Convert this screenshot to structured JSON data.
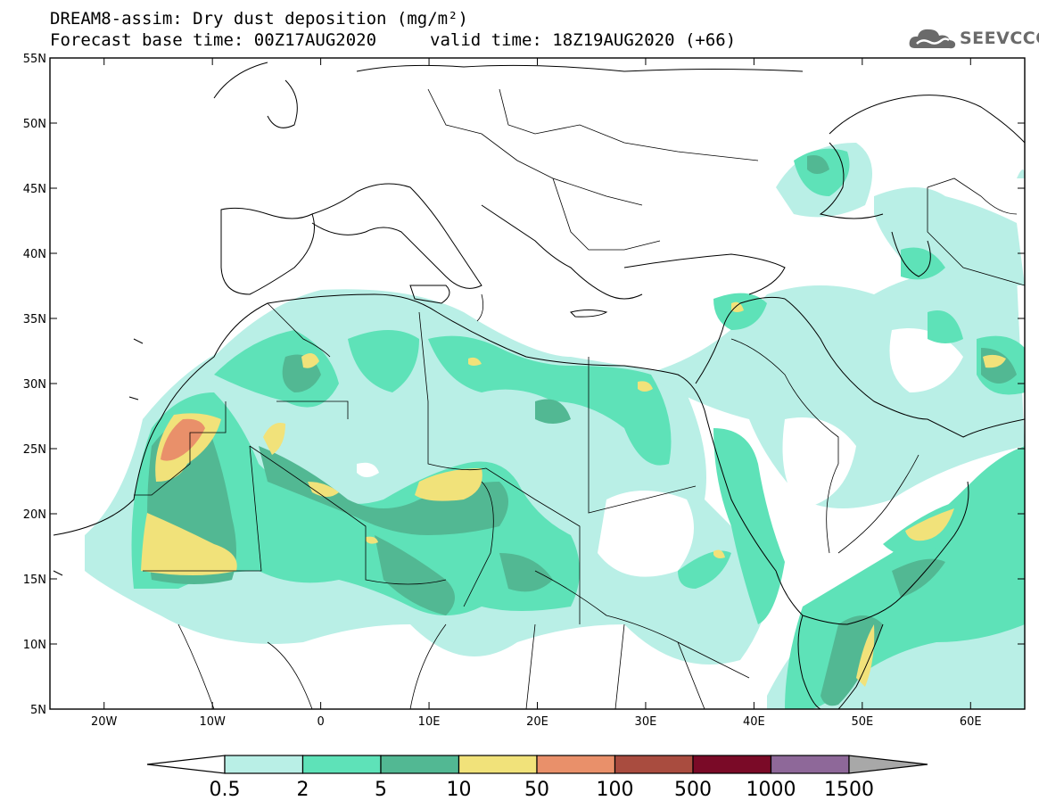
{
  "header": {
    "title_line1": "DREAM8-assim: Dry dust deposition (mg/m²)",
    "title_line2": "Forecast base time: 00Z17AUG2020",
    "valid_time": "valid time: 18Z19AUG2020 (+66)",
    "logo_text": "SEEVCCC",
    "logo_icon": "cloud-logo-icon"
  },
  "map": {
    "lat_labels": [
      "55N",
      "50N",
      "45N",
      "40N",
      "35N",
      "30N",
      "25N",
      "20N",
      "15N",
      "10N",
      "5N"
    ],
    "lon_labels": [
      "20W",
      "10W",
      "0",
      "10E",
      "20E",
      "30E",
      "40E",
      "50E",
      "60E"
    ],
    "lat_range": [
      5,
      55
    ],
    "lon_range": [
      -25,
      65
    ]
  },
  "colorbar": {
    "labels": [
      "0.5",
      "2",
      "5",
      "10",
      "50",
      "100",
      "500",
      "1000",
      "1500"
    ],
    "colors": [
      "#b9efe6",
      "#5ee2b8",
      "#52b893",
      "#f1e27a",
      "#e9906a",
      "#a94c3f",
      "#7a0a27",
      "#8e6899",
      "#a8a8a8"
    ]
  }
}
